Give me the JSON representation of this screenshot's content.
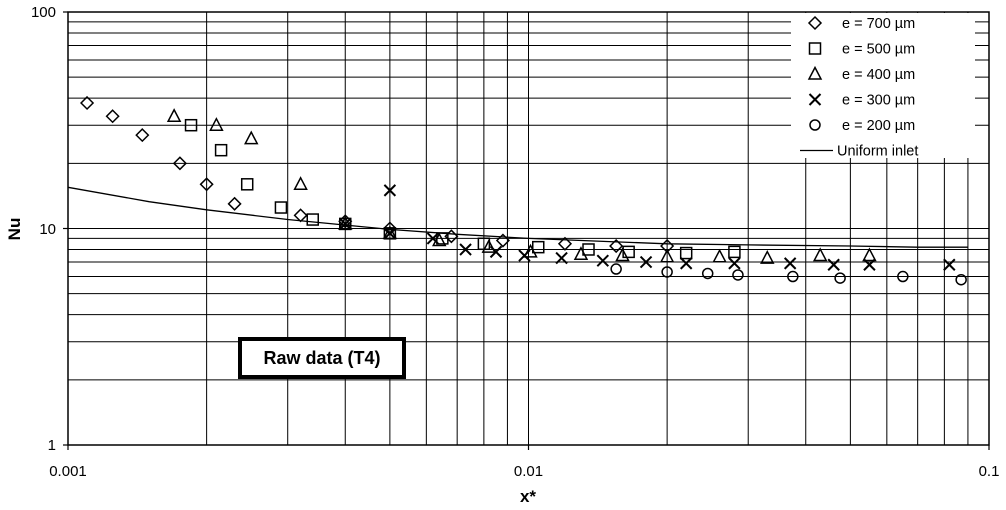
{
  "chart_data": {
    "type": "scatter",
    "xscale": "log",
    "yscale": "log",
    "xlim": [
      0.001,
      0.1
    ],
    "ylim": [
      1,
      100
    ],
    "xlabel": "x*",
    "ylabel": "Nu",
    "grid": true,
    "legend_position": "top-right",
    "x_tick_labels": [
      "0.001",
      "0.01",
      "0.1"
    ],
    "y_tick_labels": [
      "1",
      "10",
      "100"
    ],
    "annotation": "Raw data (T4)",
    "series": [
      {
        "name": "e = 700 µm",
        "marker": "diamond",
        "x": [
          0.0011,
          0.00125,
          0.00145,
          0.00175,
          0.002,
          0.0023,
          0.0032,
          0.004,
          0.005,
          0.0068,
          0.0088,
          0.012,
          0.0155,
          0.02
        ],
        "y": [
          38,
          33,
          27,
          20,
          16,
          13,
          11.5,
          10.8,
          10,
          9.2,
          8.8,
          8.5,
          8.3,
          8.3
        ]
      },
      {
        "name": "e = 500 µm",
        "marker": "square",
        "x": [
          0.00185,
          0.00215,
          0.00245,
          0.0029,
          0.0034,
          0.004,
          0.005,
          0.0065,
          0.008,
          0.0105,
          0.0135,
          0.0165,
          0.022,
          0.028
        ],
        "y": [
          30,
          23,
          16,
          12.5,
          11,
          10.5,
          9.5,
          9,
          8.5,
          8.2,
          8,
          7.8,
          7.7,
          7.8
        ]
      },
      {
        "name": "e = 400 µm",
        "marker": "triangle",
        "x": [
          0.0017,
          0.0021,
          0.0025,
          0.0032,
          0.004,
          0.005,
          0.0064,
          0.0082,
          0.0101,
          0.013,
          0.016,
          0.02,
          0.026,
          0.033,
          0.043,
          0.055
        ],
        "y": [
          33,
          30,
          26,
          16,
          10.5,
          9.5,
          8.8,
          8.2,
          7.8,
          7.6,
          7.5,
          7.4,
          7.4,
          7.3,
          7.5,
          7.5
        ]
      },
      {
        "name": "e = 300 µm",
        "marker": "x",
        "x": [
          0.004,
          0.005,
          0.005,
          0.0062,
          0.0073,
          0.0085,
          0.0098,
          0.0118,
          0.0145,
          0.018,
          0.022,
          0.028,
          0.037,
          0.046,
          0.055,
          0.082
        ],
        "y": [
          10.5,
          15,
          9.5,
          9,
          8,
          7.8,
          7.5,
          7.3,
          7.1,
          7,
          6.9,
          6.9,
          6.9,
          6.8,
          6.8,
          6.8
        ]
      },
      {
        "name": "e = 200 µm",
        "marker": "circle",
        "x": [
          0.0155,
          0.02,
          0.0245,
          0.0285,
          0.0375,
          0.0475,
          0.065,
          0.087
        ],
        "y": [
          6.5,
          6.3,
          6.2,
          6.1,
          6.0,
          5.9,
          6.0,
          5.8
        ]
      },
      {
        "name": "Uniform inlet",
        "marker": "line",
        "x": [
          0.001,
          0.0015,
          0.002,
          0.003,
          0.005,
          0.007,
          0.01,
          0.015,
          0.02,
          0.03,
          0.05,
          0.07,
          0.09
        ],
        "y": [
          15.5,
          13.3,
          12.2,
          11,
          9.9,
          9.4,
          9.0,
          8.7,
          8.5,
          8.4,
          8.3,
          8.2,
          8.2
        ]
      }
    ]
  }
}
